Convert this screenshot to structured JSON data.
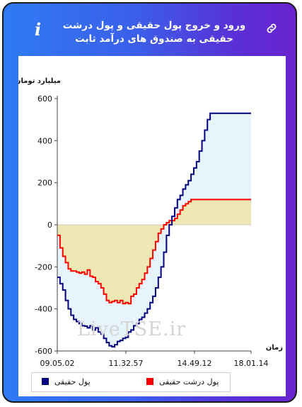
{
  "title": "ورود و خروج پول حقیقی و پول درشت حقیقی به صندوق های درآمد ثابت",
  "icons": {
    "info": "i",
    "link": "link-icon"
  },
  "watermark": "LiveTSE.ir",
  "chart_data": {
    "type": "line",
    "ylabel": "میلیارد تومان",
    "xlabel": "زمان",
    "ylim": [
      -600,
      600
    ],
    "yticks": [
      600,
      400,
      200,
      0,
      -200,
      -400,
      -600
    ],
    "x_ticks": [
      "09.05.02",
      "11.32.57",
      "14.49.12",
      "18.01.14"
    ],
    "grid": false,
    "legend_position": "bottom",
    "series": [
      {
        "name": "پول حقیقی",
        "color": "#000080",
        "values": [
          -250,
          -280,
          -310,
          -360,
          -400,
          -430,
          -450,
          -460,
          -470,
          -480,
          -482,
          -490,
          -480,
          -500,
          -490,
          -510,
          -520,
          -540,
          -560,
          -575,
          -580,
          -570,
          -555,
          -550,
          -540,
          -535,
          -510,
          -500,
          -480,
          -470,
          -450,
          -440,
          -420,
          -400,
          -370,
          -340,
          -300,
          -250,
          -200,
          -130,
          -50,
          0,
          40,
          80,
          120,
          140,
          170,
          190,
          210,
          240,
          270,
          300,
          350,
          400,
          450,
          500,
          530,
          530,
          530,
          530,
          530,
          530,
          530,
          530,
          530,
          530,
          530,
          530,
          530,
          530,
          530,
          530
        ]
      },
      {
        "name": "پول درشت حقیقی",
        "color": "#ff0000",
        "values": [
          -50,
          -110,
          -150,
          -180,
          -210,
          -220,
          -220,
          -225,
          -230,
          -225,
          -235,
          -215,
          -245,
          -250,
          -270,
          -280,
          -300,
          -330,
          -360,
          -370,
          -365,
          -360,
          -370,
          -360,
          -375,
          -370,
          -375,
          -340,
          -330,
          -300,
          -280,
          -260,
          -230,
          -200,
          -160,
          -120,
          -80,
          -40,
          -20,
          0,
          10,
          20,
          20,
          30,
          50,
          70,
          90,
          100,
          110,
          120,
          120,
          120,
          120,
          120,
          120,
          120,
          120,
          120,
          120,
          120,
          120,
          120,
          120,
          120,
          120,
          120,
          120,
          120,
          120,
          120,
          120,
          120
        ]
      }
    ]
  }
}
